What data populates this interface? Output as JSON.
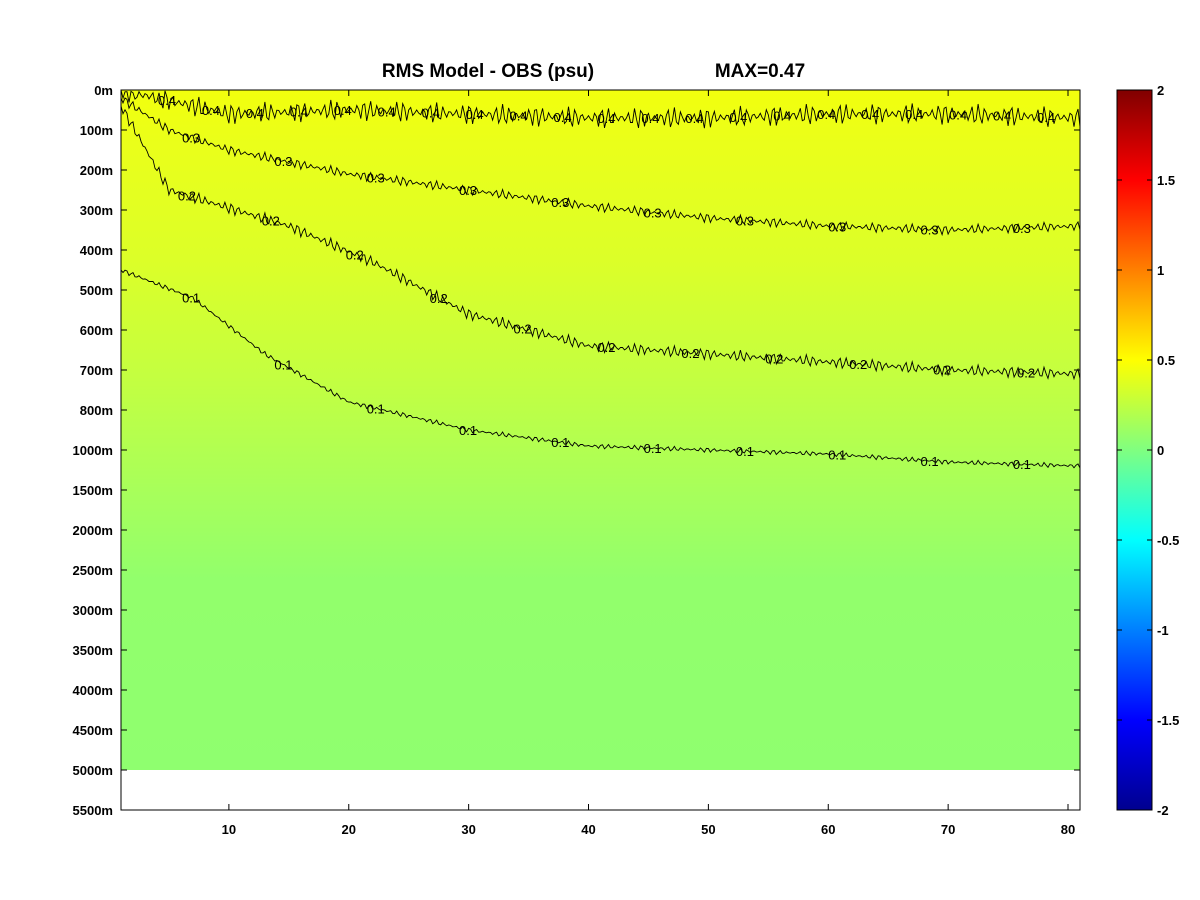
{
  "chart_data": {
    "type": "heatmap",
    "title": "RMS Model - OBS (psu)",
    "max_label": "MAX=0.47",
    "xlabel": "",
    "ylabel": "",
    "x_ticks": [
      10,
      20,
      30,
      40,
      50,
      60,
      70,
      80
    ],
    "xlim": [
      1,
      81
    ],
    "y_tick_labels": [
      "0m",
      "100m",
      "200m",
      "300m",
      "400m",
      "500m",
      "600m",
      "700m",
      "800m",
      "1000m",
      "1500m",
      "2000m",
      "2500m",
      "3000m",
      "3500m",
      "4000m",
      "4500m",
      "5000m",
      "5500m"
    ],
    "colorbar": {
      "colormap": "jet",
      "range": [
        -2,
        2
      ],
      "ticks": [
        "2",
        "1.5",
        "1",
        "0.5",
        "0",
        "-0.5",
        "-1",
        "-1.5",
        "-2"
      ]
    },
    "colors": {
      "field_surface": "#f2ff0d",
      "field_upper": "#e6ff22",
      "field_mid": "#cbff3c",
      "field_lower": "#b1ff55",
      "field_deep": "#8fff6f",
      "frame": "#000000"
    },
    "contours": [
      {
        "level": 0.4,
        "labels": [
          "0.4",
          "0.4",
          "0.4",
          "0.4",
          "0.4",
          "0.4",
          "0.4",
          "0.4",
          "0.4",
          "0.4",
          "0.4",
          "0.4",
          "0.4",
          "0.4",
          "0.4",
          "0.4",
          "0.4",
          "0.4",
          "0.4",
          "0.4",
          "0.4"
        ],
        "depth_profile": [
          [
            1,
            "0m"
          ],
          [
            10,
            "60m"
          ],
          [
            20,
            "50m"
          ],
          [
            30,
            "60m"
          ],
          [
            40,
            "70m"
          ],
          [
            50,
            "70m"
          ],
          [
            60,
            "60m"
          ],
          [
            70,
            "60m"
          ],
          [
            81,
            "70m"
          ]
        ]
      },
      {
        "level": 0.3,
        "labels": [
          "0.3",
          "0.3",
          "0.3",
          "0.3",
          "0.3",
          "0.3",
          "0.3",
          "0.3",
          "0.3",
          "0.3"
        ],
        "depth_profile": [
          [
            1,
            "20m"
          ],
          [
            5,
            "100m"
          ],
          [
            10,
            "150m"
          ],
          [
            20,
            "210m"
          ],
          [
            30,
            "250m"
          ],
          [
            40,
            "290m"
          ],
          [
            50,
            "320m"
          ],
          [
            60,
            "340m"
          ],
          [
            70,
            "350m"
          ],
          [
            81,
            "340m"
          ]
        ]
      },
      {
        "level": 0.2,
        "labels": [
          "0.2",
          "0.2",
          "0.2",
          "0.2",
          "0.2",
          "0.2",
          "0.2",
          "0.2",
          "0.2",
          "0.2",
          "0.2"
        ],
        "depth_profile": [
          [
            1,
            "40m"
          ],
          [
            5,
            "250m"
          ],
          [
            15,
            "340m"
          ],
          [
            22,
            "430m"
          ],
          [
            30,
            "560m"
          ],
          [
            40,
            "640m"
          ],
          [
            50,
            "660m"
          ],
          [
            60,
            "680m"
          ],
          [
            70,
            "700m"
          ],
          [
            81,
            "710m"
          ]
        ]
      },
      {
        "level": 0.1,
        "labels": [
          "0.1",
          "0.1",
          "0.1",
          "0.1",
          "0.1",
          "0.1",
          "0.1",
          "0.1",
          "0.1",
          "0.1"
        ],
        "depth_profile": [
          [
            1,
            "450m"
          ],
          [
            7,
            "520m"
          ],
          [
            13,
            "660m"
          ],
          [
            20,
            "780m"
          ],
          [
            30,
            "900m"
          ],
          [
            40,
            "980m"
          ],
          [
            50,
            "1000m"
          ],
          [
            60,
            "1050m"
          ],
          [
            70,
            "1150m"
          ],
          [
            81,
            "1200m"
          ]
        ]
      }
    ]
  }
}
